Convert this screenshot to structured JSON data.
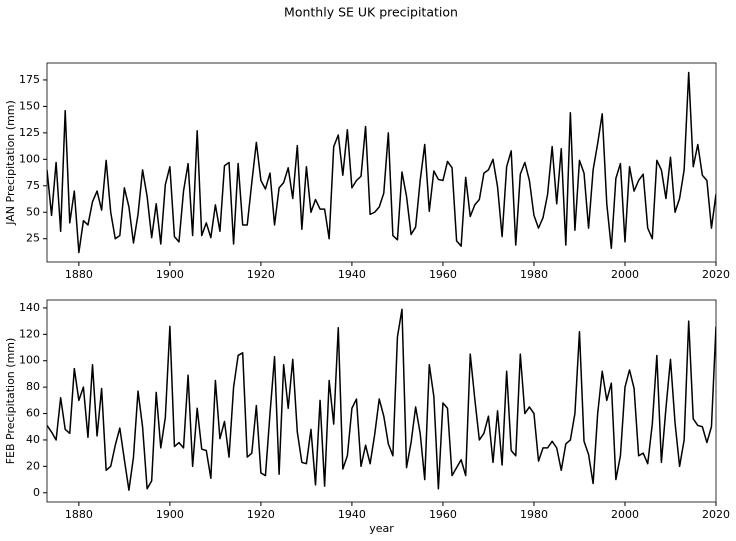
{
  "title": "Monthly SE UK precipitation",
  "chart_data": [
    {
      "type": "line",
      "ylabel": "JAN Precipitation (mm)",
      "color": "#000000",
      "xlim": [
        1873,
        2020
      ],
      "xticks": [
        1880,
        1900,
        1920,
        1940,
        1960,
        1980,
        2000,
        2020
      ],
      "ylim": [
        3,
        191
      ],
      "yticks": [
        25,
        50,
        75,
        100,
        125,
        150,
        175
      ],
      "x": [
        1873,
        1874,
        1875,
        1876,
        1877,
        1878,
        1879,
        1880,
        1881,
        1882,
        1883,
        1884,
        1885,
        1886,
        1887,
        1888,
        1889,
        1890,
        1891,
        1892,
        1893,
        1894,
        1895,
        1896,
        1897,
        1898,
        1899,
        1900,
        1901,
        1902,
        1903,
        1904,
        1905,
        1906,
        1907,
        1908,
        1909,
        1910,
        1911,
        1912,
        1913,
        1914,
        1915,
        1916,
        1917,
        1918,
        1919,
        1920,
        1921,
        1922,
        1923,
        1924,
        1925,
        1926,
        1927,
        1928,
        1929,
        1930,
        1931,
        1932,
        1933,
        1934,
        1935,
        1936,
        1937,
        1938,
        1939,
        1940,
        1941,
        1942,
        1943,
        1944,
        1945,
        1946,
        1947,
        1948,
        1949,
        1950,
        1951,
        1952,
        1953,
        1954,
        1955,
        1956,
        1957,
        1958,
        1959,
        1960,
        1961,
        1962,
        1963,
        1964,
        1965,
        1966,
        1967,
        1968,
        1969,
        1970,
        1971,
        1972,
        1973,
        1974,
        1975,
        1976,
        1977,
        1978,
        1979,
        1980,
        1981,
        1982,
        1983,
        1984,
        1985,
        1986,
        1987,
        1988,
        1989,
        1990,
        1991,
        1992,
        1993,
        1994,
        1995,
        1996,
        1997,
        1998,
        1999,
        2000,
        2001,
        2002,
        2003,
        2004,
        2005,
        2006,
        2007,
        2008,
        2009,
        2010,
        2011,
        2012,
        2013,
        2014,
        2015,
        2016,
        2017,
        2018,
        2019,
        2020
      ],
      "values": [
        90,
        47,
        97,
        32,
        146,
        40,
        70,
        12,
        42,
        38,
        60,
        70,
        52,
        99,
        50,
        25,
        28,
        73,
        55,
        21,
        48,
        90,
        65,
        26,
        58,
        20,
        76,
        93,
        27,
        22,
        70,
        96,
        28,
        127,
        28,
        40,
        26,
        57,
        32,
        94,
        97,
        20,
        96,
        38,
        38,
        78,
        116,
        80,
        72,
        87,
        38,
        73,
        78,
        92,
        63,
        113,
        34,
        93,
        50,
        62,
        53,
        53,
        25,
        112,
        123,
        85,
        128,
        73,
        80,
        84,
        131,
        48,
        50,
        55,
        68,
        125,
        28,
        24,
        88,
        65,
        29,
        36,
        80,
        114,
        51,
        89,
        81,
        80,
        98,
        92,
        23,
        18,
        83,
        46,
        57,
        62,
        87,
        90,
        100,
        74,
        27,
        93,
        108,
        19,
        86,
        97,
        80,
        47,
        35,
        45,
        67,
        112,
        58,
        110,
        19,
        144,
        33,
        99,
        87,
        35,
        90,
        115,
        143,
        58,
        16,
        82,
        96,
        22,
        93,
        70,
        80,
        86,
        35,
        25,
        99,
        90,
        63,
        102,
        50,
        63,
        90,
        182,
        93,
        114,
        85,
        80,
        35,
        67
      ]
    },
    {
      "type": "line",
      "ylabel": "FEB Precipitation (mm)",
      "xlabel": "year",
      "color": "#000000",
      "xlim": [
        1873,
        2020
      ],
      "xticks": [
        1880,
        1900,
        1920,
        1940,
        1960,
        1980,
        2000,
        2020
      ],
      "ylim": [
        -7,
        146
      ],
      "yticks": [
        0,
        20,
        40,
        60,
        80,
        100,
        120,
        140
      ],
      "x": [
        1873,
        1874,
        1875,
        1876,
        1877,
        1878,
        1879,
        1880,
        1881,
        1882,
        1883,
        1884,
        1885,
        1886,
        1887,
        1888,
        1889,
        1890,
        1891,
        1892,
        1893,
        1894,
        1895,
        1896,
        1897,
        1898,
        1899,
        1900,
        1901,
        1902,
        1903,
        1904,
        1905,
        1906,
        1907,
        1908,
        1909,
        1910,
        1911,
        1912,
        1913,
        1914,
        1915,
        1916,
        1917,
        1918,
        1919,
        1920,
        1921,
        1922,
        1923,
        1924,
        1925,
        1926,
        1927,
        1928,
        1929,
        1930,
        1931,
        1932,
        1933,
        1934,
        1935,
        1936,
        1937,
        1938,
        1939,
        1940,
        1941,
        1942,
        1943,
        1944,
        1945,
        1946,
        1947,
        1948,
        1949,
        1950,
        1951,
        1952,
        1953,
        1954,
        1955,
        1956,
        1957,
        1958,
        1959,
        1960,
        1961,
        1962,
        1963,
        1964,
        1965,
        1966,
        1967,
        1968,
        1969,
        1970,
        1971,
        1972,
        1973,
        1974,
        1975,
        1976,
        1977,
        1978,
        1979,
        1980,
        1981,
        1982,
        1983,
        1984,
        1985,
        1986,
        1987,
        1988,
        1989,
        1990,
        1991,
        1992,
        1993,
        1994,
        1995,
        1996,
        1997,
        1998,
        1999,
        2000,
        2001,
        2002,
        2003,
        2004,
        2005,
        2006,
        2007,
        2008,
        2009,
        2010,
        2011,
        2012,
        2013,
        2014,
        2015,
        2016,
        2017,
        2018,
        2019,
        2020
      ],
      "values": [
        51,
        46,
        40,
        72,
        48,
        45,
        94,
        70,
        80,
        42,
        97,
        43,
        79,
        17,
        20,
        36,
        49,
        25,
        2,
        27,
        77,
        50,
        3,
        9,
        76,
        34,
        57,
        126,
        35,
        38,
        34,
        89,
        20,
        64,
        33,
        32,
        11,
        85,
        41,
        54,
        27,
        80,
        104,
        106,
        27,
        30,
        66,
        15,
        13,
        60,
        103,
        14,
        97,
        64,
        101,
        46,
        23,
        22,
        48,
        6,
        70,
        5,
        85,
        52,
        125,
        18,
        28,
        64,
        71,
        20,
        36,
        22,
        44,
        71,
        58,
        37,
        28,
        118,
        139,
        19,
        38,
        65,
        45,
        10,
        97,
        73,
        3,
        68,
        64,
        13,
        19,
        25,
        13,
        105,
        71,
        40,
        45,
        58,
        23,
        62,
        21,
        92,
        32,
        28,
        105,
        60,
        65,
        60,
        24,
        34,
        34,
        39,
        34,
        17,
        37,
        40,
        60,
        122,
        39,
        29,
        7,
        60,
        92,
        70,
        83,
        10,
        28,
        80,
        93,
        79,
        28,
        30,
        22,
        52,
        104,
        23,
        64,
        101,
        53,
        20,
        40,
        130,
        56,
        51,
        50,
        38,
        50,
        126
      ]
    }
  ]
}
